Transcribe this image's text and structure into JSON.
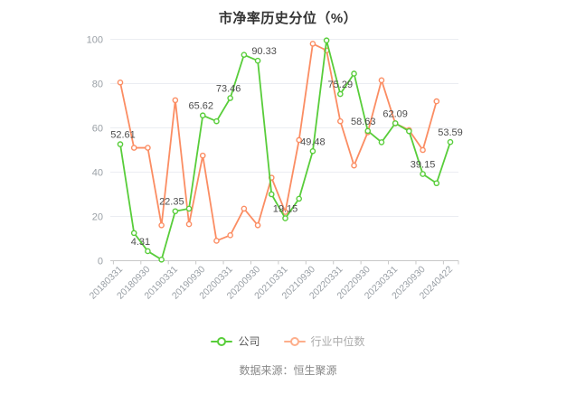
{
  "title": "市净率历史分位（%）",
  "source_note": "数据来源：恒生聚源",
  "legend": {
    "items": [
      {
        "label": "公司",
        "color": "#58cd3a"
      },
      {
        "label": "行业中位数",
        "color": "#fdae8b"
      }
    ]
  },
  "chart_data": {
    "type": "line",
    "title": "市净率历史分位（%）",
    "ylim": [
      0,
      100
    ],
    "y_ticks": [
      0,
      20,
      40,
      60,
      80,
      100
    ],
    "grid": true,
    "legend_position": "bottom",
    "x_tick_labels": [
      "20180331",
      "20180930",
      "20190331",
      "20190930",
      "20200331",
      "20200930",
      "20210331",
      "20210930",
      "20220331",
      "20220930",
      "20230331",
      "20230930",
      "20240422"
    ],
    "x_tick_point_indices": [
      0,
      2,
      4,
      6,
      8,
      10,
      12,
      14,
      16,
      18,
      20,
      22,
      24
    ],
    "series": [
      {
        "name": "公司",
        "color": "#58cd3a",
        "values": [
          52.61,
          12.5,
          4.31,
          0.5,
          22.35,
          23.5,
          65.62,
          63,
          73.46,
          93,
          90.33,
          30,
          19.15,
          28,
          49.48,
          99.5,
          75.29,
          84.5,
          58.63,
          53.5,
          62.09,
          58.5,
          39.15,
          35,
          53.59
        ]
      },
      {
        "name": "行业中位数",
        "color": "#fb8d63",
        "values": [
          80.5,
          51,
          51,
          16,
          72.5,
          16.5,
          47.5,
          9,
          11.5,
          23.5,
          16,
          37.5,
          22,
          54.5,
          98,
          95,
          63,
          43,
          58,
          81.5,
          62,
          59,
          50,
          72,
          null
        ]
      }
    ],
    "point_labels": [
      {
        "point_index": 0,
        "text": "52.61"
      },
      {
        "point_index": 2,
        "text": "4.31"
      },
      {
        "point_index": 4,
        "text": "22.35"
      },
      {
        "point_index": 6,
        "text": "65.62"
      },
      {
        "point_index": 8,
        "text": "73.46"
      },
      {
        "point_index": 10,
        "text": "90.33"
      },
      {
        "point_index": 12,
        "text": "19.15"
      },
      {
        "point_index": 14,
        "text": "49.48"
      },
      {
        "point_index": 16,
        "text": "75.29"
      },
      {
        "point_index": 18,
        "text": "58.63"
      },
      {
        "point_index": 20,
        "text": "62.09"
      },
      {
        "point_index": 22,
        "text": "39.15"
      },
      {
        "point_index": 24,
        "text": "53.59"
      }
    ],
    "axis_colors": {
      "grid_line": "#ebedf2",
      "axis_line": "#c8c8c8",
      "tick_label": "#9aa0a6",
      "point_label": "#4d4d4d"
    }
  }
}
